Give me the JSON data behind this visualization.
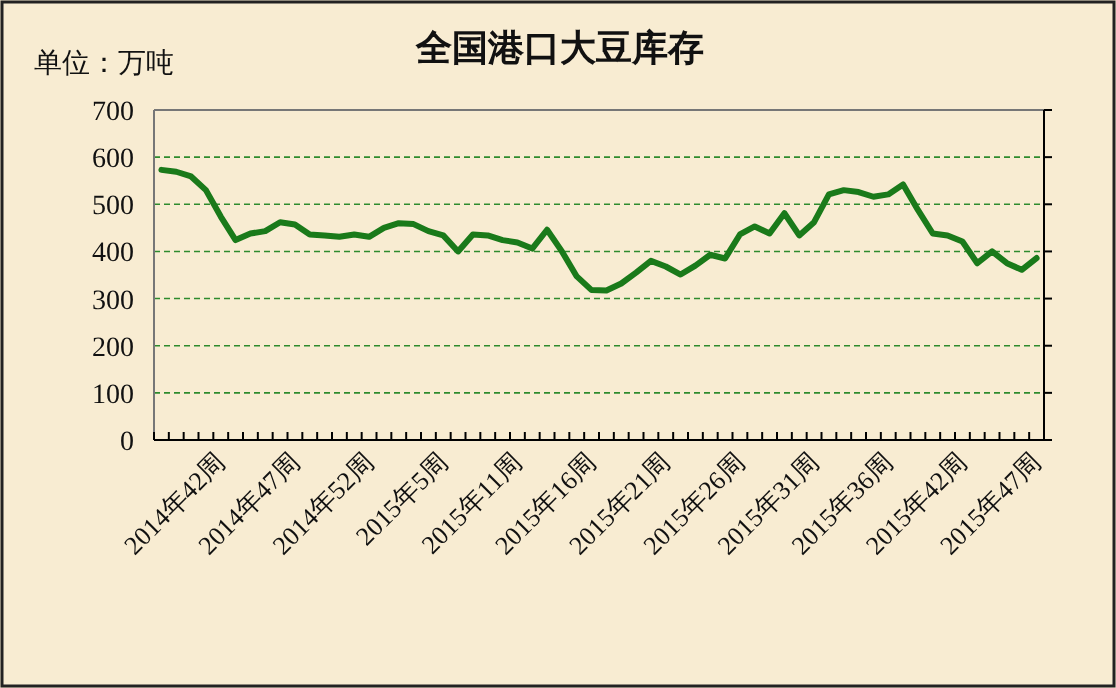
{
  "chart_data": {
    "type": "line",
    "title": "全国港口大豆库存",
    "ylabel": "单位：万吨",
    "categories": [
      null,
      null,
      null,
      null,
      "2014年42周",
      null,
      null,
      null,
      null,
      "2014年47周",
      null,
      null,
      null,
      null,
      "2014年52周",
      null,
      null,
      null,
      null,
      "2015年5周",
      null,
      null,
      null,
      null,
      "2015年11周",
      null,
      null,
      null,
      null,
      "2015年16周",
      null,
      null,
      null,
      null,
      "2015年21周",
      null,
      null,
      null,
      null,
      "2015年26周",
      null,
      null,
      null,
      null,
      "2015年31周",
      null,
      null,
      null,
      null,
      "2015年36周",
      null,
      null,
      null,
      null,
      "2015年42周",
      null,
      null,
      null,
      null,
      "2015年47周"
    ],
    "series": [
      {
        "color": "#1a7a1a",
        "values": [
          573,
          569,
          559,
          530,
          474,
          424,
          438,
          443,
          462,
          457,
          436,
          434,
          431,
          436,
          431,
          450,
          460,
          458,
          443,
          434,
          400,
          436,
          434,
          424,
          419,
          406,
          446,
          400,
          347,
          318,
          317,
          332,
          355,
          380,
          368,
          351,
          370,
          393,
          385,
          436,
          453,
          438,
          481,
          434,
          462,
          521,
          530,
          526,
          516,
          521,
          542,
          488,
          438,
          434,
          421,
          375,
          400,
          375,
          361,
          386
        ]
      }
    ],
    "ylim": [
      0,
      700
    ],
    "yticks": [
      0,
      100,
      200,
      300,
      400,
      500,
      600,
      700
    ],
    "grid": "y",
    "marker": "none",
    "line_style": "solid"
  }
}
